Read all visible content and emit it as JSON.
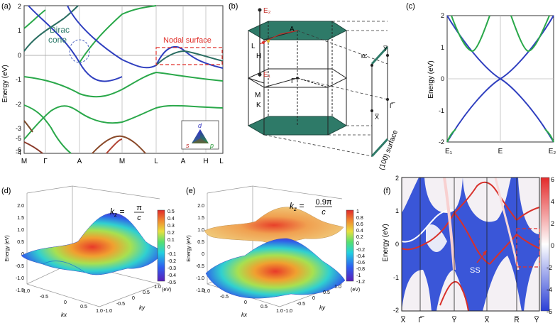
{
  "panels": {
    "a": {
      "label": "(a)",
      "ylabel": "Energy (eV)",
      "yticks": [
        "2",
        "1",
        "0",
        "-1",
        "-2",
        "-3",
        "-4",
        "-5",
        "-6"
      ],
      "xticks": [
        "M",
        "Γ",
        "A",
        "M",
        "L",
        "A",
        "H",
        "L"
      ],
      "dirac_label_1": "Dirac",
      "dirac_label_2": "cone",
      "nodal_label": "Nodal surface",
      "legend": {
        "d": "d",
        "s": "s",
        "p": "p"
      }
    },
    "b": {
      "label": "(b)",
      "e2": "E₂",
      "e1": "E₁",
      "points": {
        "A": "A",
        "L": "L",
        "H": "H",
        "M": "M",
        "K": "K",
        "Gamma": "Γ"
      },
      "surface_points": {
        "Ybar": "Y̅",
        "Rbar": "R̅",
        "Xbar": "X̅",
        "Gbar": "Γ̅"
      },
      "surface_label": "(100) surface"
    },
    "c": {
      "label": "(c)",
      "ylabel": "Energy (eV)",
      "yticks": [
        "2",
        "1",
        "0",
        "-1",
        "-2"
      ],
      "xticks": [
        "E₁",
        "E",
        "E₂"
      ]
    },
    "d": {
      "label": "(d)",
      "zlabel": "Energy (eV)",
      "kz_text": "k",
      "kz_sub": "z",
      "kz_eq": " = ",
      "kz_num": "π",
      "kz_den": "c",
      "cbar": [
        "0.5",
        "0.4",
        "0.3",
        "0.2",
        "0.1",
        "0",
        "-0.1",
        "-0.2",
        "-0.3",
        "-0.4",
        "-0.5"
      ],
      "cbar_unit": "(eV)",
      "zticks": [
        "2.0",
        "1.5",
        "1.0",
        "0.5",
        "0",
        "-0.5",
        "-1.0",
        "-1.5"
      ],
      "kx_ticks": [
        "-1.0",
        "-0.5",
        "0",
        "0.5",
        "1.0"
      ],
      "ky_ticks": [
        "-1.0",
        "-0.5",
        "0",
        "0.5",
        "1.0"
      ],
      "kx": "kx",
      "ky": "ky"
    },
    "e": {
      "label": "(e)",
      "zlabel": "Energy (eV)",
      "kz_text": "k",
      "kz_sub": "z",
      "kz_eq": " = ",
      "kz_num": "0.9π",
      "kz_den": "c",
      "cbar": [
        "1",
        "0.8",
        "0.6",
        "0.4",
        "0.2",
        "0",
        "-0.2",
        "-0.4",
        "-0.6",
        "-0.8",
        "-1",
        "-1.2"
      ],
      "cbar_unit": "(eV)",
      "zticks": [
        "2.0",
        "1.5",
        "1.0",
        "0.5",
        "0",
        "-0.5",
        "-1.0",
        "-1.5"
      ],
      "kx_ticks": [
        "-1.0",
        "-0.5",
        "0",
        "0.5",
        "1.0"
      ],
      "ky_ticks": [
        "-1.0",
        "-0.5",
        "0",
        "0.5",
        "1.0"
      ],
      "kx": "kx",
      "ky": "ky"
    },
    "f": {
      "label": "(f)",
      "ylabel": "Energy (eV)",
      "yticks": [
        "2",
        "1",
        "0",
        "-1",
        "-2"
      ],
      "xticks": [
        "X̅",
        "Γ̅",
        "Y̅",
        "X̅",
        "R̅",
        "Y̅"
      ],
      "ss_label": "SS",
      "cbar": [
        "6",
        "4",
        "2",
        "0",
        "-2",
        "-4",
        "-6"
      ]
    }
  },
  "colors": {
    "green": "#2aa84a",
    "blue": "#2f3fbf",
    "teal": "#2b6e62",
    "red": "#e0302a",
    "slab": "#2e7a68"
  }
}
